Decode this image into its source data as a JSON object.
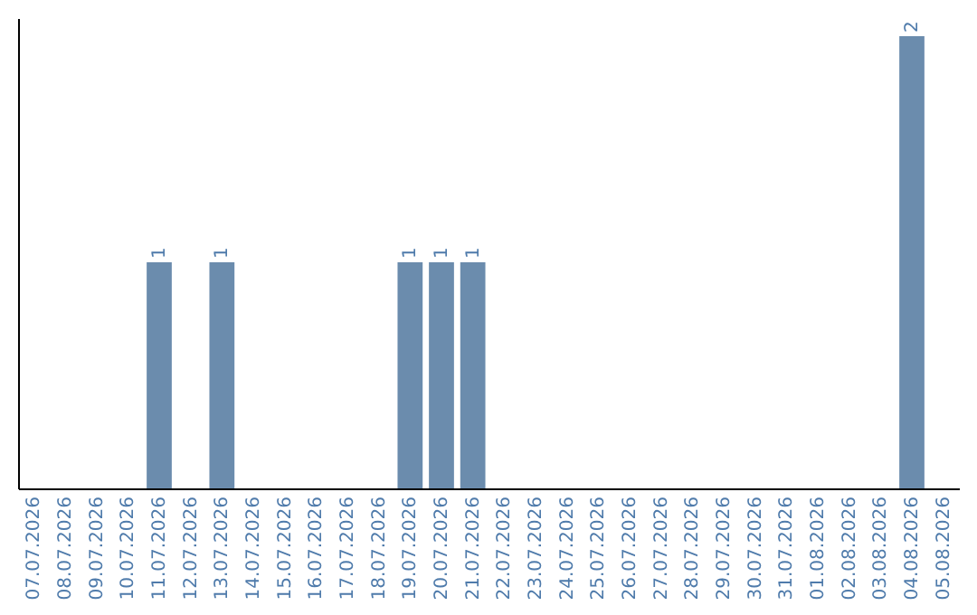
{
  "chart_data": {
    "type": "bar",
    "categories": [
      "07.07.2026",
      "08.07.2026",
      "09.07.2026",
      "10.07.2026",
      "11.07.2026",
      "12.07.2026",
      "13.07.2026",
      "14.07.2026",
      "15.07.2026",
      "16.07.2026",
      "17.07.2026",
      "18.07.2026",
      "19.07.2026",
      "20.07.2026",
      "21.07.2026",
      "22.07.2026",
      "23.07.2026",
      "24.07.2026",
      "25.07.2026",
      "26.07.2026",
      "27.07.2026",
      "28.07.2026",
      "29.07.2026",
      "30.07.2026",
      "31.07.2026",
      "01.08.2026",
      "02.08.2026",
      "03.08.2026",
      "04.08.2026",
      "05.08.2026"
    ],
    "values": [
      0,
      0,
      0,
      0,
      1,
      0,
      1,
      0,
      0,
      0,
      0,
      0,
      1,
      1,
      1,
      0,
      0,
      0,
      0,
      0,
      0,
      0,
      0,
      0,
      0,
      0,
      0,
      0,
      2,
      0
    ],
    "value_labels": [
      null,
      null,
      null,
      null,
      "1",
      null,
      "1",
      null,
      null,
      null,
      null,
      null,
      "1",
      "1",
      "1",
      null,
      null,
      null,
      null,
      null,
      null,
      null,
      null,
      null,
      null,
      null,
      null,
      null,
      "2",
      null
    ],
    "color": "#6b8cad"
  }
}
